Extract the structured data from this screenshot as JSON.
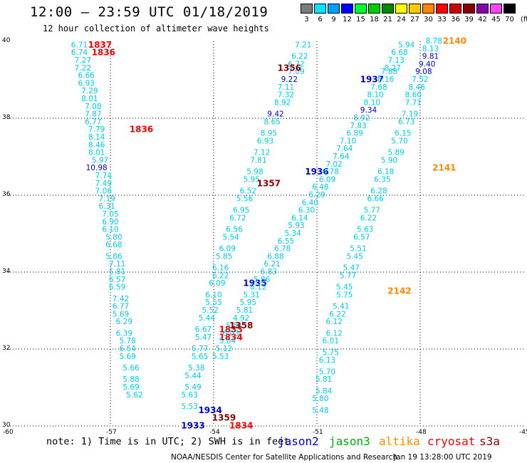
{
  "title": "12:00 – 23:59 UTC 01/18/2019",
  "subtitle": "12 hour collection of altimeter wave heights",
  "legend": {
    "unit": "(ft)",
    "scale": [
      {
        "label": "3",
        "color": "#7c7c7c"
      },
      {
        "label": "6",
        "color": "#00e5ff"
      },
      {
        "label": "9",
        "color": "#00a0ff"
      },
      {
        "label": "12",
        "color": "#0000ff"
      },
      {
        "label": "15",
        "color": "#00ff33"
      },
      {
        "label": "18",
        "color": "#00cc00"
      },
      {
        "label": "21",
        "color": "#008800"
      },
      {
        "label": "24",
        "color": "#ffff00"
      },
      {
        "label": "27",
        "color": "#ffcc00"
      },
      {
        "label": "30",
        "color": "#ff8800"
      },
      {
        "label": "33",
        "color": "#ff0000"
      },
      {
        "label": "36",
        "color": "#cc0000"
      },
      {
        "label": "39",
        "color": "#880000"
      },
      {
        "label": "42",
        "color": "#8800aa"
      },
      {
        "label": "45",
        "color": "#ff44ff"
      },
      {
        "label": "70",
        "color": "#000000"
      }
    ]
  },
  "axes": {
    "lon_ticks": [
      "-60",
      "-57",
      "-54",
      "-51",
      "-48",
      "-45"
    ],
    "lat_ticks": [
      "40",
      "38",
      "36",
      "34",
      "32",
      "30"
    ],
    "lon_range": [
      -60,
      -45
    ],
    "lat_range": [
      30,
      40
    ],
    "grid": "dotted"
  },
  "colors": {
    "cyan": "#00c8e6",
    "blue_text": "#0000cc",
    "jason2": "#0000cc",
    "jason3": "#00aa00",
    "altika": "#ff8800",
    "cryosat": "#ee0000",
    "s3a": "#880000"
  },
  "tracks": {
    "cryosat": {
      "times": [
        {
          "text": "1837",
          "lon": -57.3,
          "lat": 39.9
        },
        {
          "text": "1836",
          "lon": -57.2,
          "lat": 39.7
        },
        {
          "text": "1836",
          "lon": -56.1,
          "lat": 37.7
        },
        {
          "text": "1833",
          "lon": -53.5,
          "lat": 32.5
        },
        {
          "text": "1834",
          "lon": -53.5,
          "lat": 32.3
        },
        {
          "text": "1834",
          "lon": -53.2,
          "lat": 30.0
        }
      ],
      "values": [
        {
          "text": "6.71",
          "lon": -57.9,
          "lat": 39.9
        },
        {
          "text": "6.74",
          "lon": -57.9,
          "lat": 39.7
        },
        {
          "text": "7.27",
          "lon": -57.8,
          "lat": 39.5
        },
        {
          "text": "7.22",
          "lon": -57.8,
          "lat": 39.3
        },
        {
          "text": "6.66",
          "lon": -57.7,
          "lat": 39.1
        },
        {
          "text": "6.93",
          "lon": -57.7,
          "lat": 38.9
        },
        {
          "text": "7.29",
          "lon": -57.6,
          "lat": 38.7
        },
        {
          "text": "8.01",
          "lon": -57.6,
          "lat": 38.5
        },
        {
          "text": "7.08",
          "lon": -57.5,
          "lat": 38.3
        },
        {
          "text": "7.87",
          "lon": -57.5,
          "lat": 38.1
        },
        {
          "text": "6.77",
          "lon": -57.5,
          "lat": 37.9
        },
        {
          "text": "7.79",
          "lon": -57.4,
          "lat": 37.7
        },
        {
          "text": "8.14",
          "lon": -57.4,
          "lat": 37.5
        },
        {
          "text": "8.46",
          "lon": -57.4,
          "lat": 37.3
        },
        {
          "text": "8.01",
          "lon": -57.4,
          "lat": 37.1
        },
        {
          "text": "5.97",
          "lon": -57.3,
          "lat": 36.9
        },
        {
          "text": "10.98",
          "lon": -57.4,
          "lat": 36.7,
          "color": "#0000cc"
        },
        {
          "text": "7.74",
          "lon": -57.2,
          "lat": 36.5
        },
        {
          "text": "7.49",
          "lon": -57.2,
          "lat": 36.3
        },
        {
          "text": "7.06",
          "lon": -57.2,
          "lat": 36.1
        },
        {
          "text": "7.19",
          "lon": -57.1,
          "lat": 35.9
        },
        {
          "text": "6.31",
          "lon": -57.1,
          "lat": 35.7
        },
        {
          "text": "7.05",
          "lon": -57.0,
          "lat": 35.5
        },
        {
          "text": "6.90",
          "lon": -57.0,
          "lat": 35.3
        },
        {
          "text": "6.10",
          "lon": -57.0,
          "lat": 35.1
        },
        {
          "text": "5.80",
          "lon": -56.9,
          "lat": 34.9
        },
        {
          "text": "6.68",
          "lon": -56.9,
          "lat": 34.7
        },
        {
          "text": "5.86",
          "lon": -56.9,
          "lat": 34.4
        },
        {
          "text": "7.11",
          "lon": -56.8,
          "lat": 34.2
        },
        {
          "text": "5.81",
          "lon": -56.8,
          "lat": 34.0
        },
        {
          "text": "6.57",
          "lon": -56.8,
          "lat": 33.8
        },
        {
          "text": "6.59",
          "lon": -56.8,
          "lat": 33.6
        },
        {
          "text": "7.42",
          "lon": -56.7,
          "lat": 33.3
        },
        {
          "text": "6.77",
          "lon": -56.7,
          "lat": 33.1
        },
        {
          "text": "5.69",
          "lon": -56.7,
          "lat": 32.9
        },
        {
          "text": "6.29",
          "lon": -56.6,
          "lat": 32.7
        },
        {
          "text": "6.39",
          "lon": -56.6,
          "lat": 32.4
        },
        {
          "text": "5.78",
          "lon": -56.5,
          "lat": 32.2
        },
        {
          "text": "6.54",
          "lon": -56.5,
          "lat": 32.0
        },
        {
          "text": "5.69",
          "lon": -56.5,
          "lat": 31.8
        },
        {
          "text": "5.66",
          "lon": -56.4,
          "lat": 31.5
        },
        {
          "text": "5.88",
          "lon": -56.4,
          "lat": 31.2
        },
        {
          "text": "5.69",
          "lon": -56.4,
          "lat": 31.0
        },
        {
          "text": "5.62",
          "lon": -56.3,
          "lat": 30.8
        }
      ]
    },
    "jason2": {
      "times": [
        {
          "text": "1937",
          "lon": -49.4,
          "lat": 39.0
        },
        {
          "text": "1936",
          "lon": -51.0,
          "lat": 36.6
        },
        {
          "text": "1935",
          "lon": -52.8,
          "lat": 33.7
        },
        {
          "text": "1934",
          "lon": -54.1,
          "lat": 30.4
        },
        {
          "text": "1933",
          "lon": -54.6,
          "lat": 30.0
        }
      ],
      "values": [
        {
          "text": "7.21",
          "lon": -51.4,
          "lat": 39.9
        },
        {
          "text": "6.22",
          "lon": -51.5,
          "lat": 39.6
        },
        {
          "text": "6.72",
          "lon": -51.6,
          "lat": 39.4
        },
        {
          "text": "7.09",
          "lon": -51.6,
          "lat": 39.2
        },
        {
          "text": "9.22",
          "lon": -51.8,
          "lat": 39.0,
          "color": "#0000cc"
        },
        {
          "text": "7.11",
          "lon": -51.9,
          "lat": 38.8
        },
        {
          "text": "7.32",
          "lon": -51.9,
          "lat": 38.6
        },
        {
          "text": "8.92",
          "lon": -52.0,
          "lat": 38.4
        },
        {
          "text": "9.42",
          "lon": -52.2,
          "lat": 38.1,
          "color": "#0000cc"
        },
        {
          "text": "8.65",
          "lon": -52.3,
          "lat": 37.9
        },
        {
          "text": "8.95",
          "lon": -52.4,
          "lat": 37.6
        },
        {
          "text": "6.93",
          "lon": -52.5,
          "lat": 37.4
        },
        {
          "text": "7.12",
          "lon": -52.6,
          "lat": 37.1
        },
        {
          "text": "7.81",
          "lon": -52.7,
          "lat": 36.9
        },
        {
          "text": "5.98",
          "lon": -52.8,
          "lat": 36.6
        },
        {
          "text": "5.95",
          "lon": -52.9,
          "lat": 36.4
        },
        {
          "text": "6.52",
          "lon": -53.0,
          "lat": 36.1
        },
        {
          "text": "5.56",
          "lon": -53.1,
          "lat": 35.9
        },
        {
          "text": "6.95",
          "lon": -53.2,
          "lat": 35.6
        },
        {
          "text": "6.72",
          "lon": -53.3,
          "lat": 35.4
        },
        {
          "text": "6.56",
          "lon": -53.4,
          "lat": 35.1
        },
        {
          "text": "5.54",
          "lon": -53.5,
          "lat": 34.9
        },
        {
          "text": "6.09",
          "lon": -53.6,
          "lat": 34.6
        },
        {
          "text": "5.85",
          "lon": -53.7,
          "lat": 34.4
        },
        {
          "text": "6.16",
          "lon": -53.8,
          "lat": 34.1
        },
        {
          "text": "6.22",
          "lon": -53.8,
          "lat": 33.9
        },
        {
          "text": "6.09",
          "lon": -53.9,
          "lat": 33.7
        },
        {
          "text": "6.10",
          "lon": -54.0,
          "lat": 33.4
        },
        {
          "text": "5.55",
          "lon": -54.0,
          "lat": 33.2
        },
        {
          "text": "5.52",
          "lon": -54.1,
          "lat": 33.0
        },
        {
          "text": "5.44",
          "lon": -54.2,
          "lat": 32.8
        },
        {
          "text": "6.67",
          "lon": -54.3,
          "lat": 32.5
        },
        {
          "text": "5.47",
          "lon": -54.3,
          "lat": 32.3
        },
        {
          "text": "5.77",
          "lon": -54.4,
          "lat": 32.0
        },
        {
          "text": "5.65",
          "lon": -54.4,
          "lat": 31.8
        },
        {
          "text": "5.38",
          "lon": -54.5,
          "lat": 31.5
        },
        {
          "text": "5.44",
          "lon": -54.6,
          "lat": 31.3
        },
        {
          "text": "5.49",
          "lon": -54.6,
          "lat": 31.0
        },
        {
          "text": "5.63",
          "lon": -54.7,
          "lat": 30.8
        },
        {
          "text": "5.53",
          "lon": -54.7,
          "lat": 30.5
        }
      ]
    },
    "s3a": {
      "times": [
        {
          "text": "1356",
          "lon": -51.8,
          "lat": 39.3
        },
        {
          "text": "1357",
          "lon": -52.4,
          "lat": 36.3
        },
        {
          "text": "1358",
          "lon": -53.2,
          "lat": 32.6
        },
        {
          "text": "1359",
          "lon": -53.7,
          "lat": 30.2
        }
      ],
      "values": [
        {
          "text": "5.94",
          "lon": -48.4,
          "lat": 39.9
        },
        {
          "text": "6.68",
          "lon": -48.6,
          "lat": 39.7
        },
        {
          "text": "7.13",
          "lon": -48.7,
          "lat": 39.5
        },
        {
          "text": "8.27",
          "lon": -48.8,
          "lat": 39.3
        },
        {
          "text": "7.88",
          "lon": -48.9,
          "lat": 39.2
        },
        {
          "text": "8.16",
          "lon": -49.0,
          "lat": 39.0
        },
        {
          "text": "7.68",
          "lon": -49.2,
          "lat": 38.8
        },
        {
          "text": "8.10",
          "lon": -49.3,
          "lat": 38.6
        },
        {
          "text": "8.10",
          "lon": -49.4,
          "lat": 38.4
        },
        {
          "text": "9.34",
          "lon": -49.5,
          "lat": 38.2,
          "color": "#0000cc"
        },
        {
          "text": "8.92",
          "lon": -49.7,
          "lat": 38.0
        },
        {
          "text": "7.83",
          "lon": -49.8,
          "lat": 37.8
        },
        {
          "text": "6.89",
          "lon": -49.9,
          "lat": 37.6
        },
        {
          "text": "7.10",
          "lon": -50.1,
          "lat": 37.4
        },
        {
          "text": "7.64",
          "lon": -50.2,
          "lat": 37.2
        },
        {
          "text": "7.64",
          "lon": -50.3,
          "lat": 37.0
        },
        {
          "text": "7.02",
          "lon": -50.5,
          "lat": 36.8
        },
        {
          "text": "6.78",
          "lon": -50.6,
          "lat": 36.6
        },
        {
          "text": "6.09",
          "lon": -50.7,
          "lat": 36.4
        },
        {
          "text": "6.48",
          "lon": -50.9,
          "lat": 36.2
        },
        {
          "text": "6.29",
          "lon": -51.0,
          "lat": 36.0
        },
        {
          "text": "6.40",
          "lon": -51.2,
          "lat": 35.8
        },
        {
          "text": "6.30",
          "lon": -51.3,
          "lat": 35.6
        },
        {
          "text": "6.14",
          "lon": -51.5,
          "lat": 35.4
        },
        {
          "text": "5.93",
          "lon": -51.6,
          "lat": 35.2
        },
        {
          "text": "5.34",
          "lon": -51.7,
          "lat": 35.0
        },
        {
          "text": "6.55",
          "lon": -51.9,
          "lat": 34.8
        },
        {
          "text": "6.78",
          "lon": -52.0,
          "lat": 34.6
        },
        {
          "text": "6.88",
          "lon": -52.2,
          "lat": 34.4
        },
        {
          "text": "6.21",
          "lon": -52.3,
          "lat": 34.2
        },
        {
          "text": "6.83",
          "lon": -52.4,
          "lat": 34.0
        },
        {
          "text": "5.86",
          "lon": -52.6,
          "lat": 33.8
        },
        {
          "text": "6.12",
          "lon": -52.7,
          "lat": 33.6
        },
        {
          "text": "5.31",
          "lon": -52.9,
          "lat": 33.4
        },
        {
          "text": "5.95",
          "lon": -53.0,
          "lat": 33.2
        },
        {
          "text": "5.81",
          "lon": -53.1,
          "lat": 33.0
        },
        {
          "text": "4.92",
          "lon": -53.2,
          "lat": 32.8
        },
        {
          "text": "5.51",
          "lon": -53.4,
          "lat": 32.6
        },
        {
          "text": "6.03",
          "lon": -53.5,
          "lat": 32.4
        },
        {
          "text": "5.04",
          "lon": -53.6,
          "lat": 32.2
        },
        {
          "text": "5.12",
          "lon": -53.7,
          "lat": 32.0
        },
        {
          "text": "5.53",
          "lon": -53.8,
          "lat": 31.8
        }
      ]
    },
    "altika": {
      "times": [
        {
          "text": "2140",
          "lon": -47.0,
          "lat": 40.0
        },
        {
          "text": "2141",
          "lon": -47.3,
          "lat": 36.7
        },
        {
          "text": "2142",
          "lon": -48.6,
          "lat": 33.5
        }
      ],
      "values": [
        {
          "text": "8.78",
          "lon": -47.6,
          "lat": 40.0
        },
        {
          "text": "8.13",
          "lon": -47.7,
          "lat": 39.8
        },
        {
          "text": "9.81",
          "lon": -47.7,
          "lat": 39.6,
          "color": "#0000cc"
        },
        {
          "text": "9.40",
          "lon": -47.8,
          "lat": 39.4,
          "color": "#0000cc"
        },
        {
          "text": "9.08",
          "lon": -47.9,
          "lat": 39.2,
          "color": "#0000cc"
        },
        {
          "text": "7.52",
          "lon": -48.0,
          "lat": 39.0
        },
        {
          "text": "8.46",
          "lon": -48.1,
          "lat": 38.8
        },
        {
          "text": "8.60",
          "lon": -48.2,
          "lat": 38.6
        },
        {
          "text": "7.71",
          "lon": -48.2,
          "lat": 38.4
        },
        {
          "text": "7.19",
          "lon": -48.3,
          "lat": 38.1
        },
        {
          "text": "6.73",
          "lon": -48.4,
          "lat": 37.9
        },
        {
          "text": "6.15",
          "lon": -48.5,
          "lat": 37.6
        },
        {
          "text": "5.70",
          "lon": -48.6,
          "lat": 37.4
        },
        {
          "text": "5.89",
          "lon": -48.7,
          "lat": 37.1
        },
        {
          "text": "5.90",
          "lon": -48.9,
          "lat": 36.9
        },
        {
          "text": "6.18",
          "lon": -49.0,
          "lat": 36.6
        },
        {
          "text": "6.35",
          "lon": -49.1,
          "lat": 36.4
        },
        {
          "text": "6.28",
          "lon": -49.2,
          "lat": 36.1
        },
        {
          "text": "6.66",
          "lon": -49.3,
          "lat": 35.9
        },
        {
          "text": "5.77",
          "lon": -49.4,
          "lat": 35.6
        },
        {
          "text": "6.22",
          "lon": -49.5,
          "lat": 35.4
        },
        {
          "text": "5.63",
          "lon": -49.6,
          "lat": 35.1
        },
        {
          "text": "6.57",
          "lon": -49.7,
          "lat": 34.9
        },
        {
          "text": "5.51",
          "lon": -49.8,
          "lat": 34.6
        },
        {
          "text": "5.45",
          "lon": -49.9,
          "lat": 34.4
        },
        {
          "text": "5.47",
          "lon": -50.0,
          "lat": 34.1
        },
        {
          "text": "5.77",
          "lon": -50.1,
          "lat": 33.9
        },
        {
          "text": "5.45",
          "lon": -50.2,
          "lat": 33.6
        },
        {
          "text": "5.75",
          "lon": -50.2,
          "lat": 33.4
        },
        {
          "text": "5.41",
          "lon": -50.3,
          "lat": 33.1
        },
        {
          "text": "6.22",
          "lon": -50.4,
          "lat": 32.9
        },
        {
          "text": "6.12",
          "lon": -50.5,
          "lat": 32.7
        },
        {
          "text": "6.12",
          "lon": -50.5,
          "lat": 32.4
        },
        {
          "text": "6.01",
          "lon": -50.6,
          "lat": 32.2
        },
        {
          "text": "5.75",
          "lon": -50.6,
          "lat": 31.9
        },
        {
          "text": "6.13",
          "lon": -50.7,
          "lat": 31.7
        },
        {
          "text": "5.70",
          "lon": -50.7,
          "lat": 31.4
        },
        {
          "text": "5.81",
          "lon": -50.8,
          "lat": 31.2
        },
        {
          "text": "5.84",
          "lon": -50.8,
          "lat": 30.9
        },
        {
          "text": "5.80",
          "lon": -50.9,
          "lat": 30.7
        },
        {
          "text": "5.48",
          "lon": -50.9,
          "lat": 30.4
        }
      ]
    }
  },
  "note": "note: 1) Time is in UTC; 2) SWH is in feet",
  "missions": [
    {
      "name": "jason2",
      "color": "#0000cc"
    },
    {
      "name": "jason3",
      "color": "#00aa00"
    },
    {
      "name": "altika",
      "color": "#ff8800"
    },
    {
      "name": "cryosat",
      "color": "#ee0000"
    },
    {
      "name": "s3a",
      "color": "#880000"
    }
  ],
  "footer": "NOAA/NESDIS Center for Satellite Applications and Research",
  "footer_time": "Jan 19 13:28:00 UTC 2019"
}
